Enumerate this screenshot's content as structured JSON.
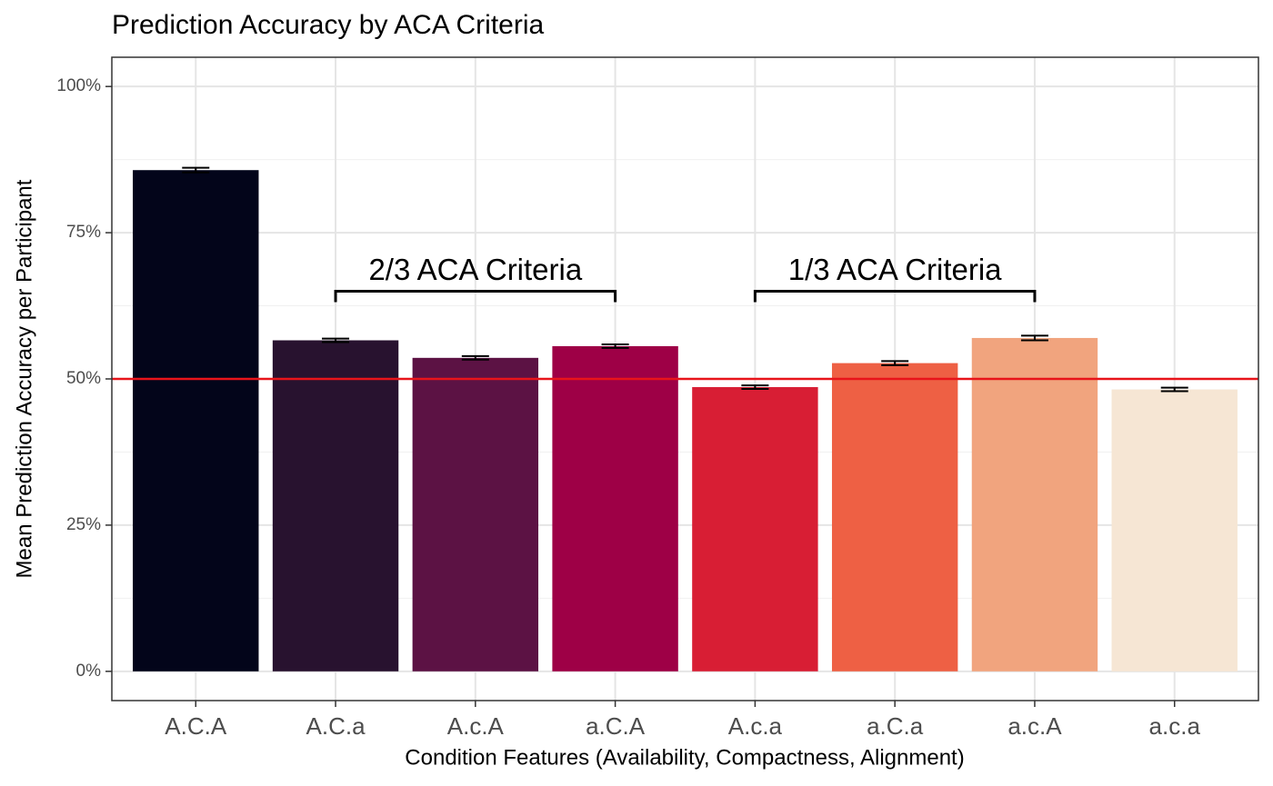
{
  "chart_data": {
    "type": "bar",
    "title": "Prediction Accuracy by ACA Criteria",
    "x_label": "Condition Features (Availability, Compactness, Alignment)",
    "y_label": "Mean Prediction Accuracy per Participant",
    "categories": [
      "A.C.A",
      "A.C.a",
      "A.c.A",
      "a.C.A",
      "A.c.a",
      "a.C.a",
      "a.c.A",
      "a.c.a"
    ],
    "values": [
      85.7,
      56.6,
      53.6,
      55.6,
      48.6,
      52.7,
      57.0,
      48.2
    ],
    "errors": [
      0.4,
      0.3,
      0.3,
      0.3,
      0.3,
      0.35,
      0.4,
      0.3
    ],
    "colors": [
      "#03051A",
      "#28122F",
      "#5C1244",
      "#9E0046",
      "#D81E34",
      "#EE6044",
      "#F1A47E",
      "#F6E6D4"
    ],
    "ylim": [
      -5,
      105
    ],
    "yticks": [
      {
        "value": 0,
        "label": "0%"
      },
      {
        "value": 25,
        "label": "25%"
      },
      {
        "value": 50,
        "label": "50%"
      },
      {
        "value": 75,
        "label": "75%"
      },
      {
        "value": 100,
        "label": "100%"
      }
    ],
    "minor_yticks": [
      12.5,
      37.5,
      62.5,
      87.5
    ],
    "grid": true,
    "hline": {
      "value": 50,
      "color": "#E8141A"
    },
    "annotations": [
      {
        "text": "2/3 ACA Criteria",
        "from": "A.C.a",
        "to": "a.C.A",
        "y": 65
      },
      {
        "text": "1/3 ACA Criteria",
        "from": "A.c.a",
        "to": "a.c.A",
        "y": 65
      }
    ]
  }
}
